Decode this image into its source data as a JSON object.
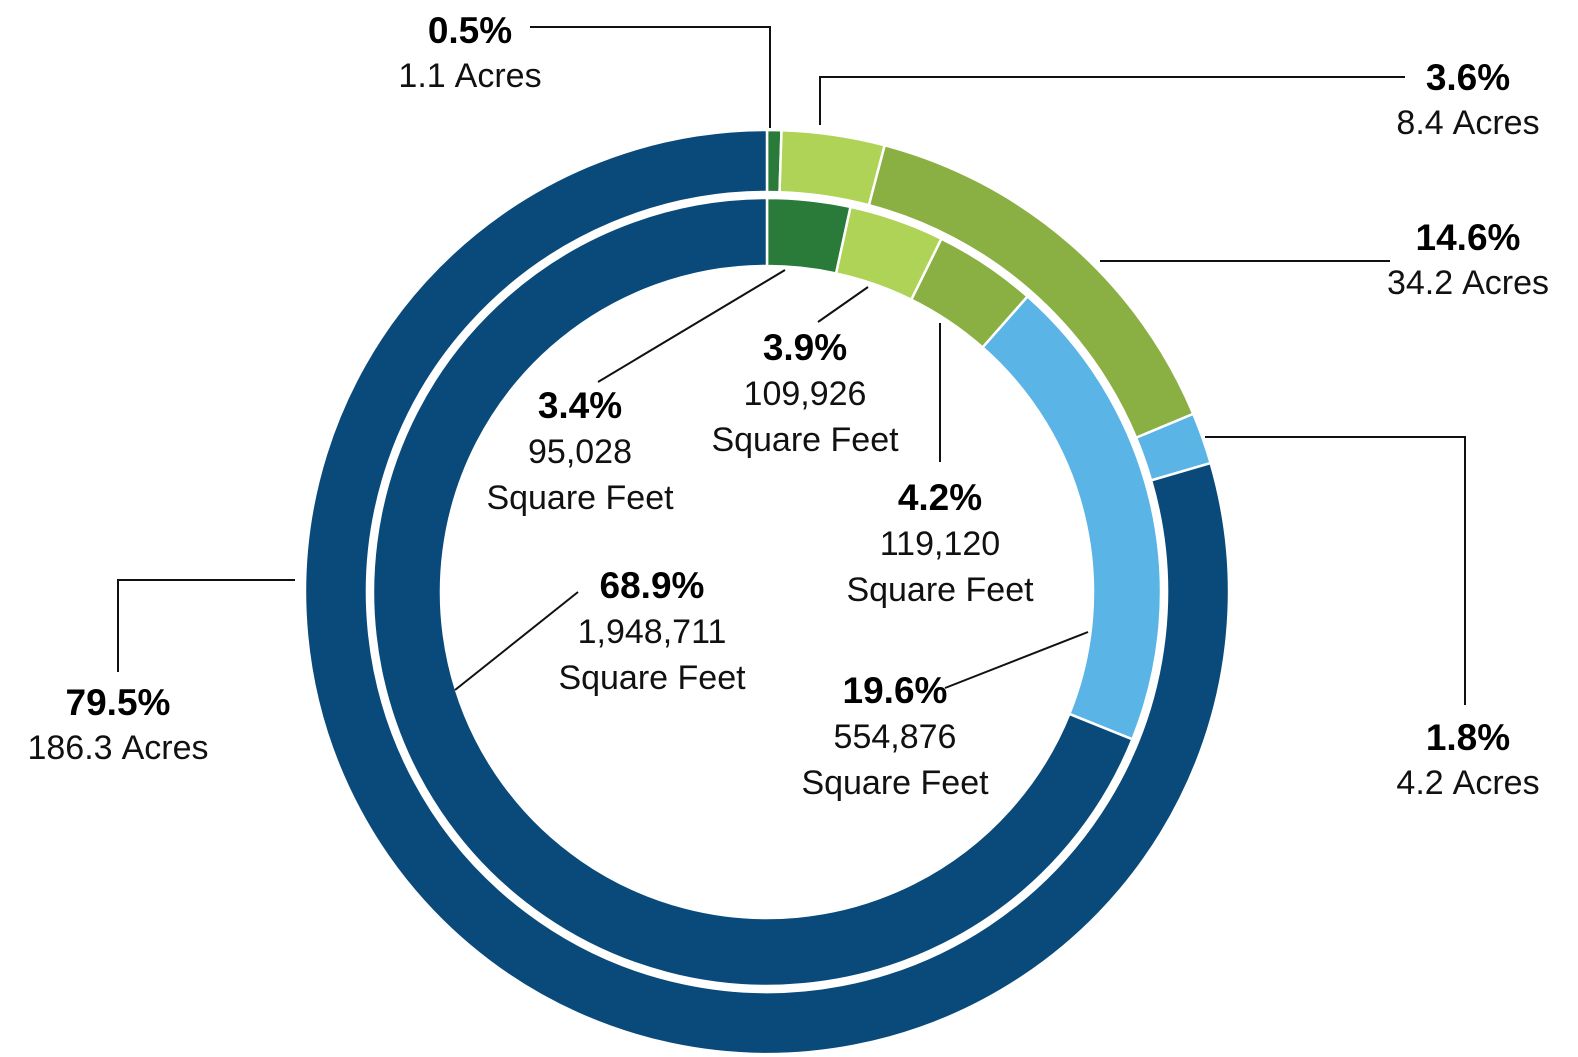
{
  "chart_data": {
    "type": "pie",
    "series": [
      {
        "values": [
          0.5,
          3.6,
          14.6,
          1.8,
          79.5
        ],
        "value_labels": [
          "0.5%",
          "3.6%",
          "14.6%",
          "1.8%",
          "79.5%"
        ],
        "amounts": [
          1.1,
          8.4,
          34.2,
          4.2,
          186.3
        ],
        "unit_label": "Acres",
        "colors": [
          "#2a7a3a",
          "#aed357",
          "#8ab043",
          "#5ab4e5",
          "#0a4a7a"
        ]
      },
      {
        "values": [
          3.4,
          3.9,
          4.2,
          19.6,
          68.9
        ],
        "value_labels": [
          "3.4%",
          "3.9%",
          "4.2%",
          "19.6%",
          "68.9%"
        ],
        "amounts": [
          95028,
          109926,
          119120,
          554876,
          1948711
        ],
        "amount_labels": [
          "95,028",
          "109,926",
          "119,120",
          "554,876",
          "1,948,711"
        ],
        "unit_label": "Square Feet",
        "colors": [
          "#2a7a3a",
          "#aed357",
          "#8ab043",
          "#5ab4e5",
          "#0a4a7a"
        ]
      }
    ]
  }
}
